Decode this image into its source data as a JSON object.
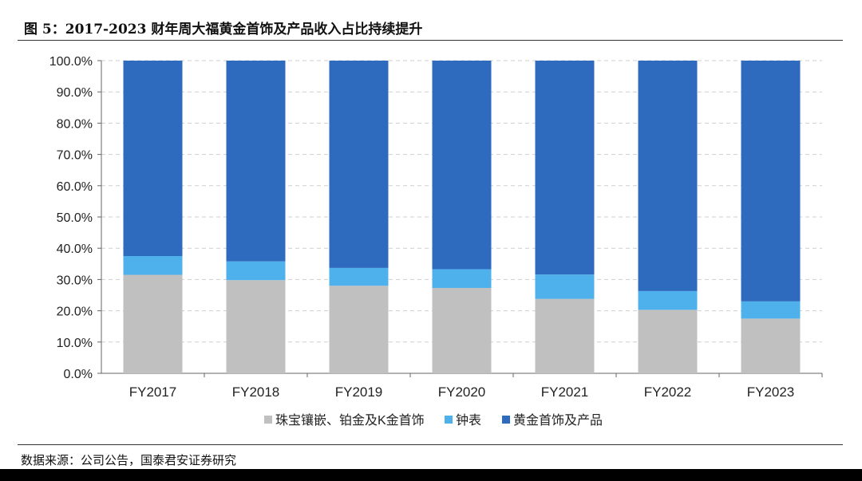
{
  "figure_title": "图 5：2017-2023 财年周大福黄金首饰及产品收入占比持续提升",
  "source_note": "数据来源：公司公告，国泰君安证券研究",
  "chart_data": {
    "type": "bar",
    "stacked": true,
    "categories": [
      "FY2017",
      "FY2018",
      "FY2019",
      "FY2020",
      "FY2021",
      "FY2022",
      "FY2023"
    ],
    "series": [
      {
        "name": "珠宝镶嵌、铂金及K金首饰",
        "color": "#c0c0c0",
        "values": [
          31.5,
          29.8,
          28.0,
          27.3,
          23.8,
          20.3,
          17.5
        ]
      },
      {
        "name": "钟表",
        "color": "#4fb1ec",
        "values": [
          6.0,
          6.0,
          5.7,
          6.0,
          7.8,
          6.0,
          5.5
        ]
      },
      {
        "name": "黄金首饰及产品",
        "color": "#2e6bbf",
        "values": [
          62.5,
          64.2,
          66.3,
          66.7,
          68.4,
          73.7,
          77.0
        ]
      }
    ],
    "ylim": [
      0,
      100
    ],
    "yticks": [
      "0.0%",
      "10.0%",
      "20.0%",
      "30.0%",
      "40.0%",
      "50.0%",
      "60.0%",
      "70.0%",
      "80.0%",
      "90.0%",
      "100.0%"
    ],
    "grid": true,
    "legend_position": "bottom"
  }
}
